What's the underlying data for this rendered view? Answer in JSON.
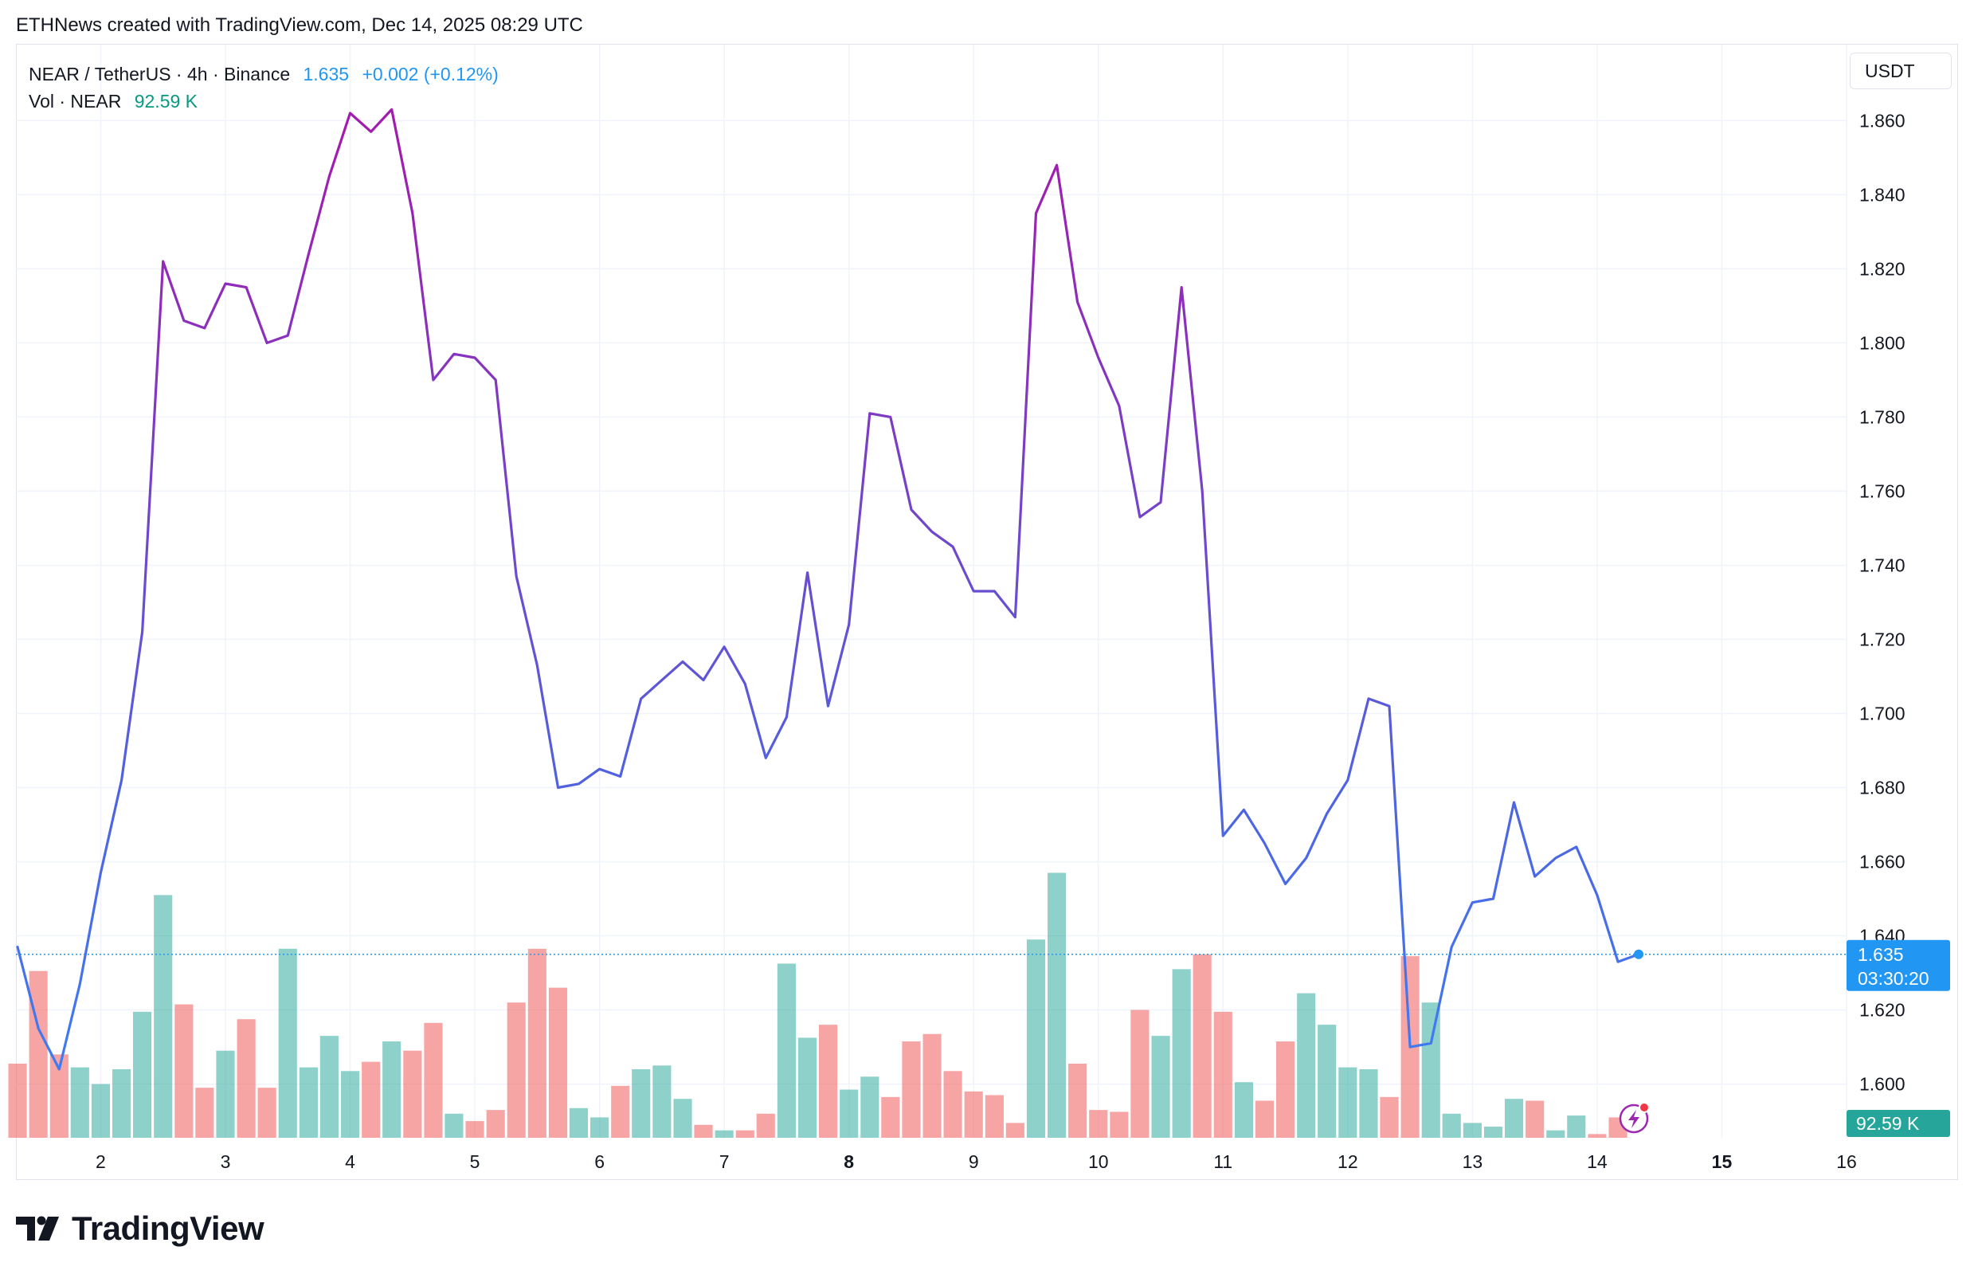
{
  "header": {
    "text": "ETHNews created with TradingView.com, Dec 14, 2025 08:29 UTC"
  },
  "legend": {
    "pair": "NEAR / TetherUS · 4h · Binance",
    "price": "1.635",
    "change": "+0.002 (+0.12%)",
    "vol_label": "Vol · NEAR",
    "vol_value": "92.59 K"
  },
  "currency_button": "USDT",
  "last_price_tag": {
    "price": "1.635",
    "countdown": "03:30:20"
  },
  "volume_tag": "92.59 K",
  "brand": {
    "name": "TradingView"
  },
  "colors": {
    "up": "#26a69a",
    "down": "#ef5350",
    "line_start": "#3b82f6",
    "line_peak": "#a21caf",
    "accent": "#2196f3"
  },
  "chart_data": {
    "type": "line",
    "title": "NEAR / TetherUS · 4h · Binance",
    "xlabel": "",
    "ylabel": "USDT",
    "x_ticks": [
      "2",
      "3",
      "4",
      "5",
      "6",
      "7",
      "8",
      "9",
      "10",
      "11",
      "12",
      "13",
      "14",
      "15",
      "16"
    ],
    "x_tick_positions": [
      2,
      3,
      4,
      5,
      6,
      7,
      8,
      9,
      10,
      11,
      12,
      13,
      14,
      15,
      16
    ],
    "y_ticks": [
      1.6,
      1.62,
      1.64,
      1.66,
      1.68,
      1.7,
      1.72,
      1.74,
      1.76,
      1.78,
      1.8,
      1.82,
      1.84,
      1.86
    ],
    "ylim": [
      1.5855,
      1.8805
    ],
    "xlim": [
      1.32,
      16.0
    ],
    "grid": true,
    "last_value": 1.635,
    "series": [
      {
        "values": [
          [
            1.333,
            1.637
          ],
          [
            1.5,
            1.615
          ],
          [
            1.667,
            1.604
          ],
          [
            1.833,
            1.627
          ],
          [
            2.0,
            1.657
          ],
          [
            2.167,
            1.682
          ],
          [
            2.333,
            1.722
          ],
          [
            2.5,
            1.822
          ],
          [
            2.667,
            1.806
          ],
          [
            2.833,
            1.804
          ],
          [
            3.0,
            1.816
          ],
          [
            3.167,
            1.815
          ],
          [
            3.333,
            1.8
          ],
          [
            3.5,
            1.802
          ],
          [
            3.667,
            1.824
          ],
          [
            3.833,
            1.845
          ],
          [
            4.0,
            1.862
          ],
          [
            4.167,
            1.857
          ],
          [
            4.333,
            1.863
          ],
          [
            4.5,
            1.835
          ],
          [
            4.667,
            1.79
          ],
          [
            4.833,
            1.797
          ],
          [
            5.0,
            1.796
          ],
          [
            5.167,
            1.79
          ],
          [
            5.333,
            1.737
          ],
          [
            5.5,
            1.713
          ],
          [
            5.667,
            1.68
          ],
          [
            5.833,
            1.681
          ],
          [
            6.0,
            1.685
          ],
          [
            6.167,
            1.683
          ],
          [
            6.333,
            1.704
          ],
          [
            6.5,
            1.709
          ],
          [
            6.667,
            1.714
          ],
          [
            6.833,
            1.709
          ],
          [
            7.0,
            1.718
          ],
          [
            7.167,
            1.708
          ],
          [
            7.333,
            1.688
          ],
          [
            7.5,
            1.699
          ],
          [
            7.667,
            1.738
          ],
          [
            7.833,
            1.702
          ],
          [
            8.0,
            1.724
          ],
          [
            8.167,
            1.781
          ],
          [
            8.333,
            1.78
          ],
          [
            8.5,
            1.755
          ],
          [
            8.667,
            1.749
          ],
          [
            8.833,
            1.745
          ],
          [
            9.0,
            1.733
          ],
          [
            9.167,
            1.733
          ],
          [
            9.333,
            1.726
          ],
          [
            9.5,
            1.835
          ],
          [
            9.667,
            1.848
          ],
          [
            9.833,
            1.811
          ],
          [
            10.0,
            1.796
          ],
          [
            10.167,
            1.783
          ],
          [
            10.333,
            1.753
          ],
          [
            10.5,
            1.757
          ],
          [
            10.667,
            1.815
          ],
          [
            10.833,
            1.76
          ],
          [
            11.0,
            1.667
          ],
          [
            11.167,
            1.674
          ],
          [
            11.333,
            1.665
          ],
          [
            11.5,
            1.654
          ],
          [
            11.667,
            1.661
          ],
          [
            11.833,
            1.673
          ],
          [
            12.0,
            1.682
          ],
          [
            12.167,
            1.704
          ],
          [
            12.333,
            1.702
          ],
          [
            12.5,
            1.61
          ],
          [
            12.667,
            1.611
          ],
          [
            12.833,
            1.637
          ],
          [
            13.0,
            1.649
          ],
          [
            13.167,
            1.65
          ],
          [
            13.333,
            1.676
          ],
          [
            13.5,
            1.656
          ],
          [
            13.667,
            1.661
          ],
          [
            13.833,
            1.664
          ],
          [
            14.0,
            1.651
          ],
          [
            14.167,
            1.633
          ],
          [
            14.333,
            1.635
          ]
        ]
      },
      {
        "type": "bar",
        "values": [
          [
            1.333,
            1.6055,
            "down"
          ],
          [
            1.5,
            1.6305,
            "down"
          ],
          [
            1.667,
            1.608,
            "down"
          ],
          [
            1.833,
            1.6045,
            "up"
          ],
          [
            2.0,
            1.6,
            "up"
          ],
          [
            2.167,
            1.604,
            "up"
          ],
          [
            2.333,
            1.6195,
            "up"
          ],
          [
            2.5,
            1.651,
            "up"
          ],
          [
            2.667,
            1.6215,
            "down"
          ],
          [
            2.833,
            1.599,
            "down"
          ],
          [
            3.0,
            1.609,
            "up"
          ],
          [
            3.167,
            1.6175,
            "down"
          ],
          [
            3.333,
            1.599,
            "down"
          ],
          [
            3.5,
            1.6365,
            "up"
          ],
          [
            3.667,
            1.6045,
            "up"
          ],
          [
            3.833,
            1.613,
            "up"
          ],
          [
            4.0,
            1.6035,
            "up"
          ],
          [
            4.167,
            1.606,
            "down"
          ],
          [
            4.333,
            1.6115,
            "up"
          ],
          [
            4.5,
            1.609,
            "down"
          ],
          [
            4.667,
            1.6165,
            "down"
          ],
          [
            4.833,
            1.592,
            "up"
          ],
          [
            5.0,
            1.59,
            "down"
          ],
          [
            5.167,
            1.593,
            "down"
          ],
          [
            5.333,
            1.622,
            "down"
          ],
          [
            5.5,
            1.6365,
            "down"
          ],
          [
            5.667,
            1.626,
            "down"
          ],
          [
            5.833,
            1.5935,
            "up"
          ],
          [
            6.0,
            1.591,
            "up"
          ],
          [
            6.167,
            1.5995,
            "down"
          ],
          [
            6.333,
            1.604,
            "up"
          ],
          [
            6.5,
            1.605,
            "up"
          ],
          [
            6.667,
            1.596,
            "up"
          ],
          [
            6.833,
            1.589,
            "down"
          ],
          [
            7.0,
            1.5875,
            "up"
          ],
          [
            7.167,
            1.5875,
            "down"
          ],
          [
            7.333,
            1.592,
            "down"
          ],
          [
            7.5,
            1.6325,
            "up"
          ],
          [
            7.667,
            1.6125,
            "up"
          ],
          [
            7.833,
            1.616,
            "down"
          ],
          [
            8.0,
            1.5985,
            "up"
          ],
          [
            8.167,
            1.602,
            "up"
          ],
          [
            8.333,
            1.5965,
            "down"
          ],
          [
            8.5,
            1.6115,
            "down"
          ],
          [
            8.667,
            1.6135,
            "down"
          ],
          [
            8.833,
            1.6035,
            "down"
          ],
          [
            9.0,
            1.598,
            "down"
          ],
          [
            9.167,
            1.597,
            "down"
          ],
          [
            9.333,
            1.5895,
            "down"
          ],
          [
            9.5,
            1.639,
            "up"
          ],
          [
            9.667,
            1.657,
            "up"
          ],
          [
            9.833,
            1.6055,
            "down"
          ],
          [
            10.0,
            1.593,
            "down"
          ],
          [
            10.167,
            1.5925,
            "down"
          ],
          [
            10.333,
            1.62,
            "down"
          ],
          [
            10.5,
            1.613,
            "up"
          ],
          [
            10.667,
            1.631,
            "up"
          ],
          [
            10.833,
            1.635,
            "down"
          ],
          [
            11.0,
            1.6195,
            "down"
          ],
          [
            11.167,
            1.6005,
            "up"
          ],
          [
            11.333,
            1.5955,
            "down"
          ],
          [
            11.5,
            1.6115,
            "down"
          ],
          [
            11.667,
            1.6245,
            "up"
          ],
          [
            11.833,
            1.616,
            "up"
          ],
          [
            12.0,
            1.6045,
            "up"
          ],
          [
            12.167,
            1.604,
            "up"
          ],
          [
            12.333,
            1.5965,
            "down"
          ],
          [
            12.5,
            1.6345,
            "down"
          ],
          [
            12.667,
            1.622,
            "up"
          ],
          [
            12.833,
            1.592,
            "up"
          ],
          [
            13.0,
            1.5895,
            "up"
          ],
          [
            13.167,
            1.5885,
            "up"
          ],
          [
            13.333,
            1.596,
            "up"
          ],
          [
            13.5,
            1.5955,
            "down"
          ],
          [
            13.667,
            1.5875,
            "up"
          ],
          [
            13.833,
            1.5915,
            "up"
          ],
          [
            14.0,
            1.5865,
            "down"
          ],
          [
            14.167,
            1.591,
            "down"
          ]
        ]
      }
    ]
  }
}
